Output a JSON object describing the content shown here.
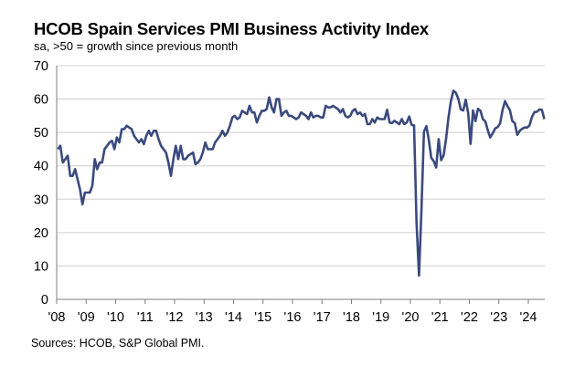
{
  "chart_data": {
    "type": "line",
    "title": "HCOB Spain Services PMI Business Activity Index",
    "subtitle": "sa, >50 = growth since previous month",
    "source": "Sources: HCOB, S&P Global PMI.",
    "xlabel": "",
    "ylabel": "",
    "ylim": [
      0,
      70
    ],
    "yticks": [
      0,
      10,
      20,
      30,
      40,
      50,
      60,
      70
    ],
    "xticks": [
      "'08",
      "'09",
      "'10",
      "'11",
      "'12",
      "'13",
      "'14",
      "'15",
      "'16",
      "'17",
      "'18",
      "'19",
      "'20",
      "'21",
      "'22",
      "'23",
      "'24"
    ],
    "x_start": "2008-01",
    "x_end": "2024-07",
    "frequency": "monthly",
    "grid": "horizontal",
    "line_color": "#3b4a7d",
    "series": [
      {
        "values": [
          45,
          46,
          41,
          42,
          43,
          37,
          37,
          39,
          36,
          33,
          28.5,
          32,
          32,
          32,
          34,
          42,
          39,
          41,
          41,
          45,
          46,
          47,
          47.5,
          45,
          48.5,
          47,
          51,
          51,
          52,
          51.5,
          51,
          49,
          48,
          47,
          48,
          46.5,
          49,
          50.5,
          49,
          50.5,
          50.5,
          48,
          46,
          45,
          44,
          41,
          37,
          42,
          46,
          42,
          46,
          42,
          42,
          43,
          43.5,
          44,
          40.5,
          41,
          42,
          44,
          47,
          45,
          45,
          45,
          47,
          48,
          49,
          50.5,
          49,
          50,
          52,
          54.5,
          55,
          54,
          54.5,
          56.5,
          56,
          55.5,
          58,
          56,
          56,
          53,
          55,
          56.5,
          56.5,
          57,
          60.5,
          57.5,
          56,
          60,
          60,
          55,
          56,
          56.5,
          55,
          55,
          54.5,
          54,
          54.5,
          56,
          55.5,
          55,
          54,
          56,
          54.5,
          55,
          55,
          54.5,
          54.5,
          58,
          57.5,
          57.5,
          58,
          57.5,
          57,
          56,
          57,
          55,
          54.5,
          55,
          56.5,
          57,
          55.5,
          56,
          55,
          55.5,
          52.5,
          52.5,
          54,
          53,
          54.5,
          54,
          54,
          54,
          56.8,
          53,
          52.8,
          53.5,
          53,
          52.5,
          54,
          52.5,
          53,
          54.8,
          52.3,
          52.1,
          23,
          7.1,
          27,
          50.2,
          51.9,
          47.7,
          42.4,
          41.4,
          39.5,
          48,
          41.7,
          43.1,
          48.1,
          54.6,
          59.4,
          62.5,
          61.9,
          60.1,
          56.9,
          56.6,
          59.8,
          55.8,
          46.6,
          56.6,
          53.4,
          57.1,
          56.5,
          54,
          53.3,
          50.6,
          48.5,
          49.7,
          51.2,
          51.6,
          52.7,
          56.7,
          59.4,
          57.9,
          56.7,
          53.4,
          52.8,
          49.3,
          50.5,
          51.1,
          51.5,
          51.5,
          52.1,
          54.7,
          56.1,
          56.2,
          56.9,
          56.8,
          54.0
        ]
      }
    ]
  }
}
